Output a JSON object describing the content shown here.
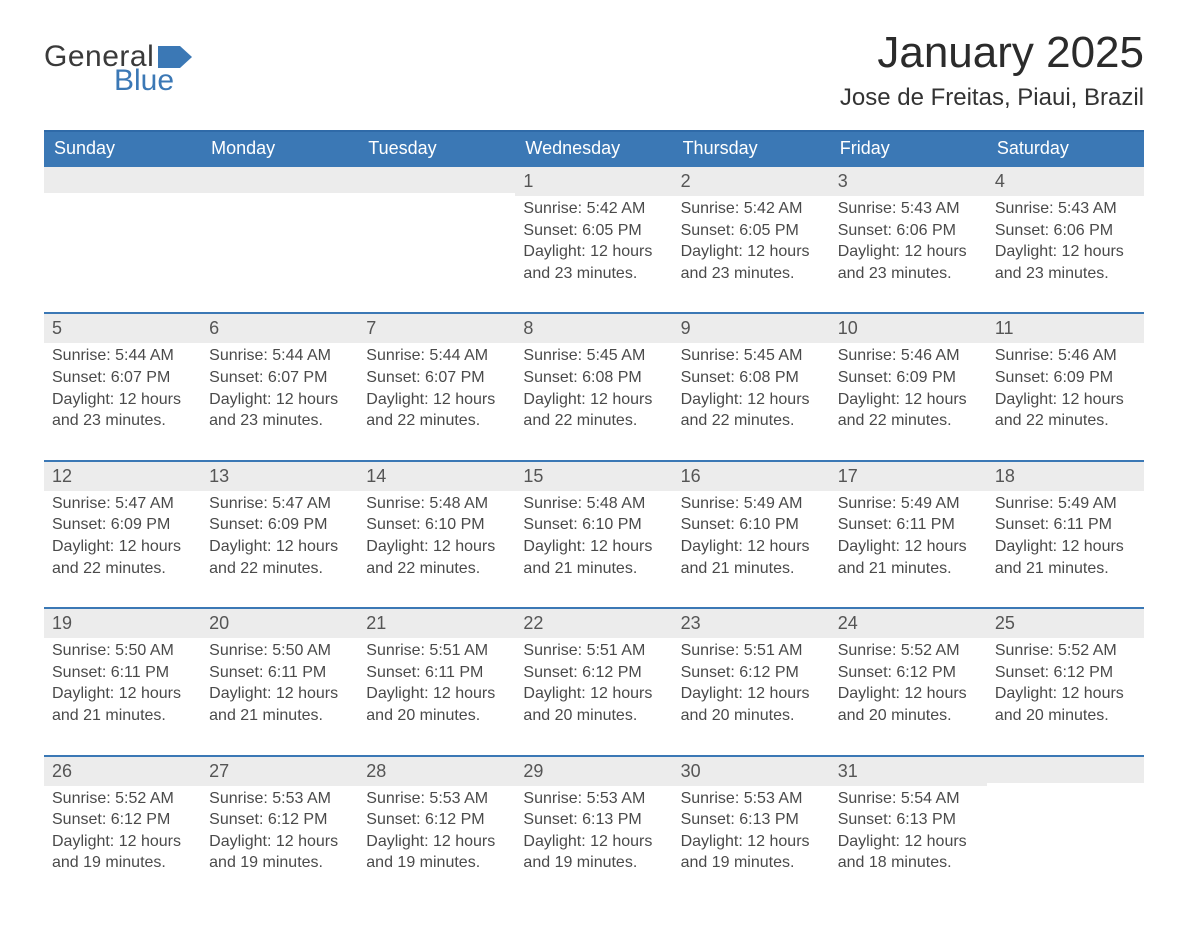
{
  "brand": {
    "word1": "General",
    "word2": "Blue"
  },
  "title": "January 2025",
  "location": "Jose de Freitas, Piaui, Brazil",
  "colors": {
    "brand": "#3b78b5",
    "row_grey": "#ececec",
    "background": "#ffffff",
    "text": "#2e2e2e"
  },
  "weekdays": [
    "Sunday",
    "Monday",
    "Tuesday",
    "Wednesday",
    "Thursday",
    "Friday",
    "Saturday"
  ],
  "labels": {
    "sunrise": "Sunrise:",
    "sunset": "Sunset:",
    "daylight": "Daylight:"
  },
  "weeks": [
    [
      {
        "blank": true
      },
      {
        "blank": true
      },
      {
        "blank": true
      },
      {
        "n": "1",
        "sr": "5:42 AM",
        "ss": "6:05 PM",
        "dl": "12 hours and 23 minutes."
      },
      {
        "n": "2",
        "sr": "5:42 AM",
        "ss": "6:05 PM",
        "dl": "12 hours and 23 minutes."
      },
      {
        "n": "3",
        "sr": "5:43 AM",
        "ss": "6:06 PM",
        "dl": "12 hours and 23 minutes."
      },
      {
        "n": "4",
        "sr": "5:43 AM",
        "ss": "6:06 PM",
        "dl": "12 hours and 23 minutes."
      }
    ],
    [
      {
        "n": "5",
        "sr": "5:44 AM",
        "ss": "6:07 PM",
        "dl": "12 hours and 23 minutes."
      },
      {
        "n": "6",
        "sr": "5:44 AM",
        "ss": "6:07 PM",
        "dl": "12 hours and 23 minutes."
      },
      {
        "n": "7",
        "sr": "5:44 AM",
        "ss": "6:07 PM",
        "dl": "12 hours and 22 minutes."
      },
      {
        "n": "8",
        "sr": "5:45 AM",
        "ss": "6:08 PM",
        "dl": "12 hours and 22 minutes."
      },
      {
        "n": "9",
        "sr": "5:45 AM",
        "ss": "6:08 PM",
        "dl": "12 hours and 22 minutes."
      },
      {
        "n": "10",
        "sr": "5:46 AM",
        "ss": "6:09 PM",
        "dl": "12 hours and 22 minutes."
      },
      {
        "n": "11",
        "sr": "5:46 AM",
        "ss": "6:09 PM",
        "dl": "12 hours and 22 minutes."
      }
    ],
    [
      {
        "n": "12",
        "sr": "5:47 AM",
        "ss": "6:09 PM",
        "dl": "12 hours and 22 minutes."
      },
      {
        "n": "13",
        "sr": "5:47 AM",
        "ss": "6:09 PM",
        "dl": "12 hours and 22 minutes."
      },
      {
        "n": "14",
        "sr": "5:48 AM",
        "ss": "6:10 PM",
        "dl": "12 hours and 22 minutes."
      },
      {
        "n": "15",
        "sr": "5:48 AM",
        "ss": "6:10 PM",
        "dl": "12 hours and 21 minutes."
      },
      {
        "n": "16",
        "sr": "5:49 AM",
        "ss": "6:10 PM",
        "dl": "12 hours and 21 minutes."
      },
      {
        "n": "17",
        "sr": "5:49 AM",
        "ss": "6:11 PM",
        "dl": "12 hours and 21 minutes."
      },
      {
        "n": "18",
        "sr": "5:49 AM",
        "ss": "6:11 PM",
        "dl": "12 hours and 21 minutes."
      }
    ],
    [
      {
        "n": "19",
        "sr": "5:50 AM",
        "ss": "6:11 PM",
        "dl": "12 hours and 21 minutes."
      },
      {
        "n": "20",
        "sr": "5:50 AM",
        "ss": "6:11 PM",
        "dl": "12 hours and 21 minutes."
      },
      {
        "n": "21",
        "sr": "5:51 AM",
        "ss": "6:11 PM",
        "dl": "12 hours and 20 minutes."
      },
      {
        "n": "22",
        "sr": "5:51 AM",
        "ss": "6:12 PM",
        "dl": "12 hours and 20 minutes."
      },
      {
        "n": "23",
        "sr": "5:51 AM",
        "ss": "6:12 PM",
        "dl": "12 hours and 20 minutes."
      },
      {
        "n": "24",
        "sr": "5:52 AM",
        "ss": "6:12 PM",
        "dl": "12 hours and 20 minutes."
      },
      {
        "n": "25",
        "sr": "5:52 AM",
        "ss": "6:12 PM",
        "dl": "12 hours and 20 minutes."
      }
    ],
    [
      {
        "n": "26",
        "sr": "5:52 AM",
        "ss": "6:12 PM",
        "dl": "12 hours and 19 minutes."
      },
      {
        "n": "27",
        "sr": "5:53 AM",
        "ss": "6:12 PM",
        "dl": "12 hours and 19 minutes."
      },
      {
        "n": "28",
        "sr": "5:53 AM",
        "ss": "6:12 PM",
        "dl": "12 hours and 19 minutes."
      },
      {
        "n": "29",
        "sr": "5:53 AM",
        "ss": "6:13 PM",
        "dl": "12 hours and 19 minutes."
      },
      {
        "n": "30",
        "sr": "5:53 AM",
        "ss": "6:13 PM",
        "dl": "12 hours and 19 minutes."
      },
      {
        "n": "31",
        "sr": "5:54 AM",
        "ss": "6:13 PM",
        "dl": "12 hours and 18 minutes."
      },
      {
        "blank": true
      }
    ]
  ]
}
